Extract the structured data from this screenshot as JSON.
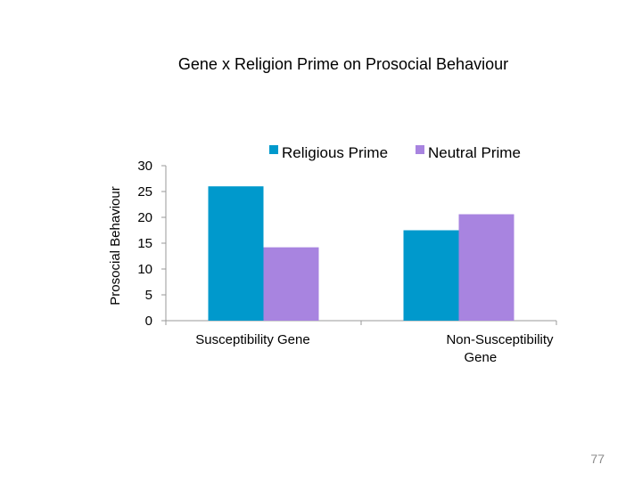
{
  "slide": {
    "page_number": "77"
  },
  "chart_data": {
    "type": "bar",
    "title": "Gene x Religion Prime on Prosocial Behaviour",
    "xlabel": "",
    "ylabel": "Prosocial Behaviour",
    "categories": [
      "Susceptibility Gene",
      "Non-Susceptibility Gene"
    ],
    "category_lines": [
      [
        "Susceptibility Gene"
      ],
      [
        "Non-Susceptibility",
        "Gene"
      ]
    ],
    "series": [
      {
        "name": "Religious Prime",
        "values": [
          26,
          17.5
        ],
        "color": "#0099cc"
      },
      {
        "name": "Neutral Prime",
        "values": [
          14.2,
          20.6
        ],
        "color": "#a884e0"
      }
    ],
    "ylim": [
      0,
      30
    ],
    "yticks": [
      "0",
      "5",
      "10",
      "15",
      "20",
      "25",
      "30"
    ],
    "ytick_values": [
      0,
      5,
      10,
      15,
      20,
      25,
      30
    ],
    "grid": false,
    "legend_position": "top-right"
  }
}
